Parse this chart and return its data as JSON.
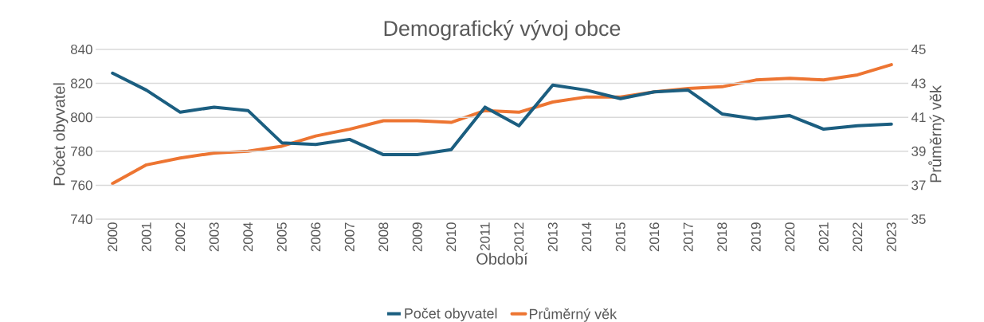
{
  "chart_data": {
    "type": "line",
    "title": "Demografický vývoj obce",
    "xlabel": "Období",
    "ylabel": "Počet obyvatel",
    "y2label": "Průměrný věk",
    "categories": [
      "2000",
      "2001",
      "2002",
      "2003",
      "2004",
      "2005",
      "2006",
      "2007",
      "2008",
      "2009",
      "2010",
      "2011",
      "2012",
      "2013",
      "2014",
      "2015",
      "2016",
      "2017",
      "2018",
      "2019",
      "2020",
      "2021",
      "2022",
      "2023"
    ],
    "series": [
      {
        "name": "Počet obyvatel",
        "color": "#1b5e80",
        "values": [
          826,
          816,
          803,
          806,
          804,
          785,
          784,
          787,
          778,
          778,
          781,
          806,
          795,
          819,
          816,
          811,
          815,
          816,
          802,
          799,
          801,
          793,
          795,
          796
        ]
      },
      {
        "name": "Průměrný věk",
        "color": "#ed7532",
        "axis": "y2",
        "values": [
          37.1,
          38.2,
          38.6,
          38.9,
          39.0,
          39.3,
          39.9,
          40.3,
          40.8,
          40.8,
          40.7,
          41.4,
          41.3,
          41.9,
          42.2,
          42.2,
          42.5,
          42.7,
          42.8,
          43.2,
          43.3,
          43.2,
          43.5,
          44.1
        ]
      }
    ],
    "ylim": [
      740,
      840
    ],
    "yticks": [
      740,
      760,
      780,
      800,
      820,
      840
    ],
    "y2lim": [
      35,
      45
    ],
    "y2ticks": [
      35,
      37,
      39,
      41,
      43,
      45
    ],
    "grid": "y",
    "legend": "bottom",
    "marker": "none",
    "line_style": "solid"
  }
}
